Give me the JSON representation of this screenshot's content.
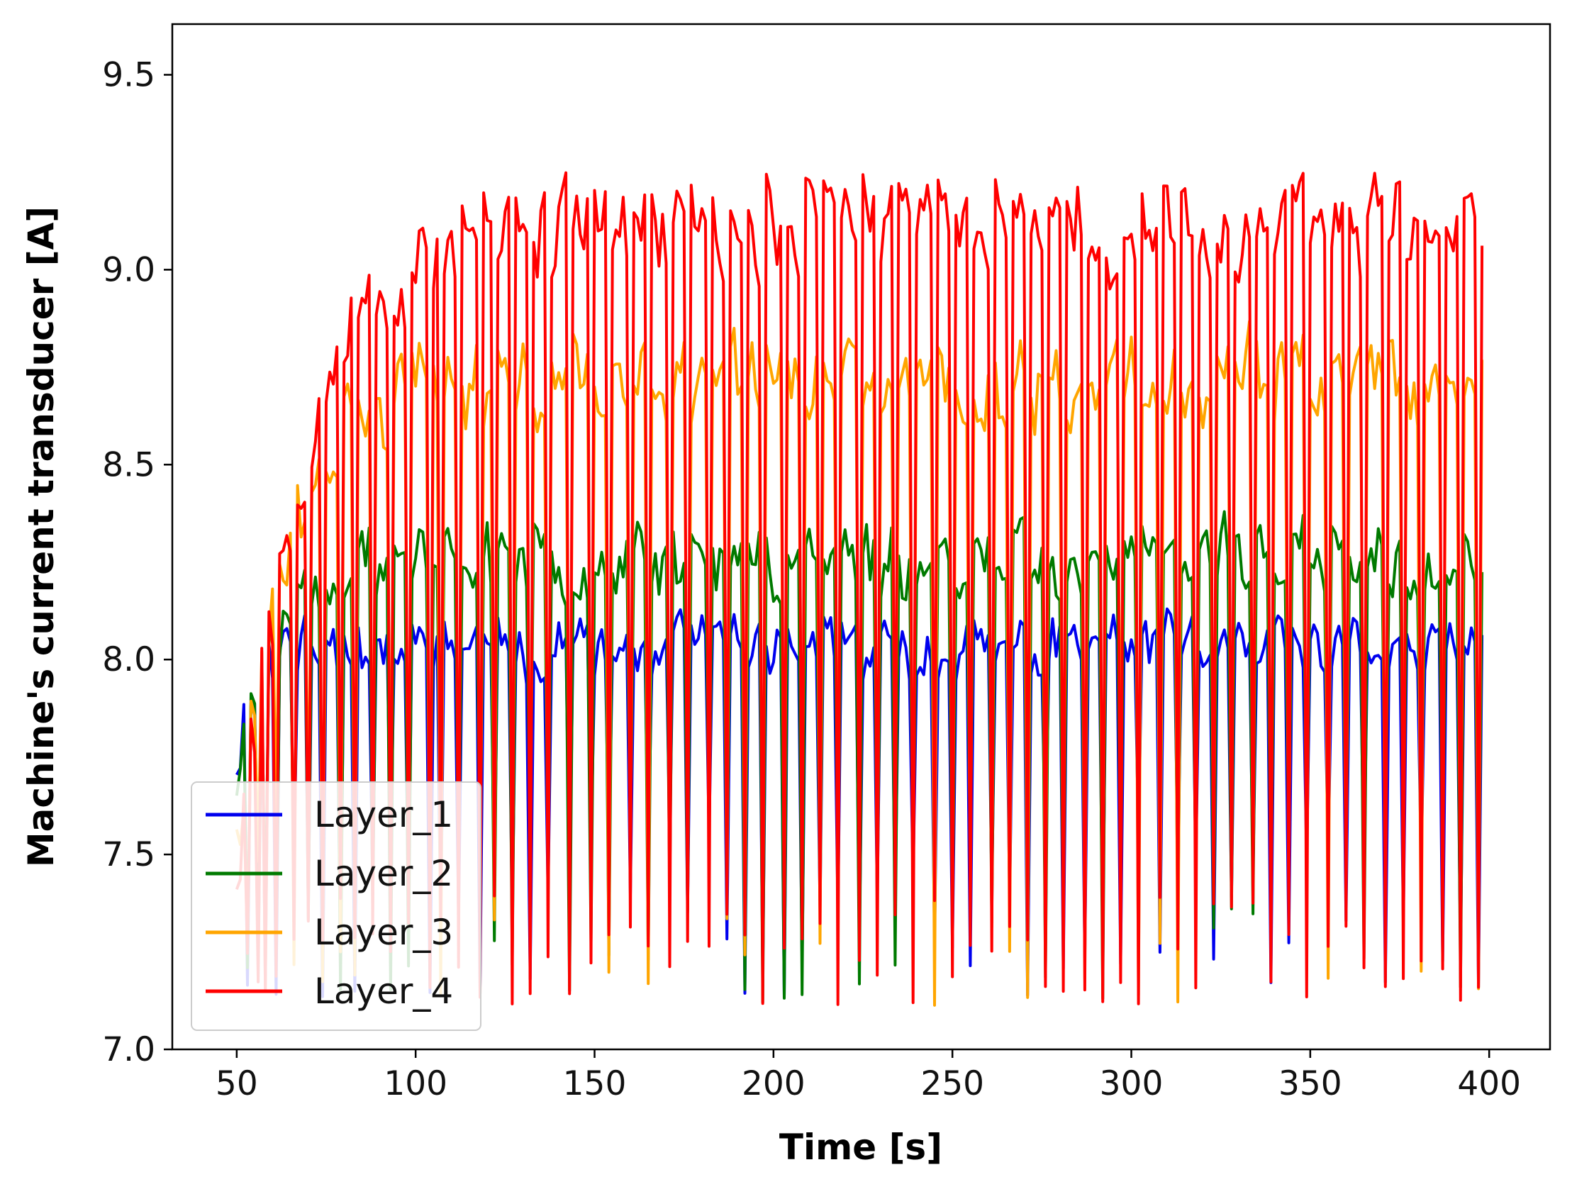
{
  "chart_data": {
    "type": "line",
    "title": "",
    "xlabel": "Time [s]",
    "ylabel": "Machine's current transducer [A]",
    "xlim": [
      32,
      417
    ],
    "ylim": [
      7.0,
      9.63
    ],
    "xticks": [
      50,
      100,
      150,
      200,
      250,
      300,
      350,
      400
    ],
    "yticks": [
      7.0,
      7.5,
      8.0,
      8.5,
      9.0,
      9.5
    ],
    "xtick_labels": [
      "50",
      "100",
      "150",
      "200",
      "250",
      "300",
      "350",
      "400"
    ],
    "ytick_labels": [
      "7.0",
      "7.5",
      "8.0",
      "8.5",
      "9.0",
      "9.5"
    ],
    "grid": false,
    "legend_position": "lower-left",
    "x_start": 50,
    "x_end": 398,
    "x_step": 1,
    "series": [
      {
        "name": "Layer_1",
        "color": "#0000ee",
        "base": 8.03,
        "noise": 0.09,
        "start": 7.75,
        "tau": 4,
        "dip_min": 7.12,
        "dip_max": 7.55,
        "seed": 11
      },
      {
        "name": "Layer_2",
        "color": "#007a00",
        "base": 8.26,
        "noise": 0.11,
        "start": 7.7,
        "tau": 10,
        "dip_min": 7.12,
        "dip_max": 7.55,
        "seed": 23
      },
      {
        "name": "Layer_3",
        "color": "#ffa500",
        "base": 8.71,
        "noise": 0.13,
        "start": 7.6,
        "tau": 14,
        "dip_min": 7.11,
        "dip_max": 7.6,
        "seed": 37
      },
      {
        "name": "Layer_4",
        "color": "#ff0000",
        "base": 9.12,
        "noise": 0.15,
        "start": 7.5,
        "tau": 18,
        "dip_min": 7.11,
        "dip_max": 7.4,
        "seed": 53
      }
    ],
    "dip_times": [
      51,
      53,
      56,
      58,
      61,
      66,
      70,
      74,
      79,
      83,
      88,
      93,
      98,
      104,
      107,
      112,
      118,
      122,
      127,
      132,
      137,
      143,
      149,
      154,
      160,
      165,
      171,
      176,
      182,
      187,
      192,
      197,
      203,
      208,
      213,
      218,
      224,
      229,
      234,
      239,
      245,
      250,
      255,
      261,
      266,
      271,
      276,
      281,
      287,
      292,
      297,
      302,
      308,
      313,
      318,
      323,
      328,
      334,
      339,
      344,
      349,
      355,
      360,
      365,
      371,
      376,
      381,
      387,
      392,
      397
    ]
  }
}
